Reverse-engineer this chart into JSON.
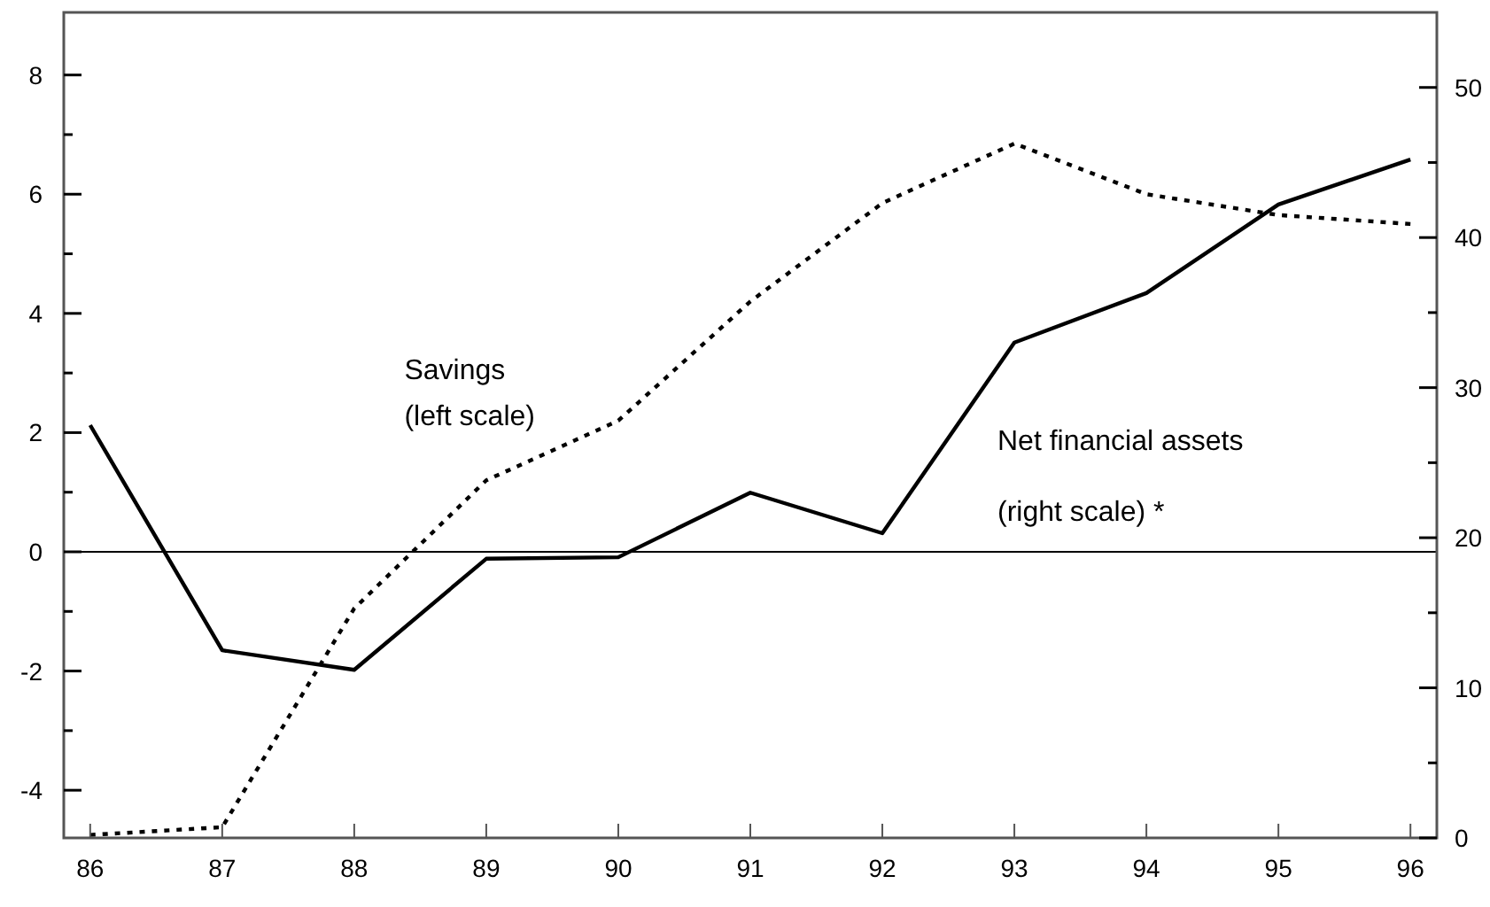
{
  "chart_data": {
    "type": "line",
    "x": [
      86,
      87,
      88,
      89,
      90,
      91,
      92,
      93,
      94,
      95,
      96
    ],
    "xlim": [
      85.8,
      96.2
    ],
    "xticks": [
      86,
      87,
      88,
      89,
      90,
      91,
      92,
      93,
      94,
      95,
      96
    ],
    "ylim": [
      -4.8,
      9.05
    ],
    "yticks": [
      -4,
      {
        "value": -3,
        "label": null
      },
      -2,
      {
        "value": -1,
        "label": null
      },
      0,
      {
        "value": 1,
        "label": null
      },
      2,
      {
        "value": 3,
        "label": null
      },
      4,
      {
        "value": 5,
        "label": null
      },
      6,
      {
        "value": 7,
        "label": null
      },
      8
    ],
    "y2lim": [
      0,
      55
    ],
    "y2ticks": [
      0,
      {
        "value": 5,
        "label": null
      },
      10,
      {
        "value": 15,
        "label": null
      },
      20,
      {
        "value": 25,
        "label": null
      },
      30,
      {
        "value": 35,
        "label": null
      },
      40,
      {
        "value": 45,
        "label": null
      },
      50
    ],
    "series": [
      {
        "name": "Savings",
        "color": "#000000",
        "line_style": "dotted",
        "values": [
          -4.75,
          -4.62,
          -0.95,
          1.2,
          2.2,
          4.2,
          5.85,
          6.85,
          6.0,
          5.65,
          5.5
        ]
      },
      {
        "name": "Net financial assets",
        "color": "#000000",
        "line_style": "solid",
        "axis": "y2",
        "values": [
          27.5,
          12.5,
          11.2,
          18.6,
          18.7,
          23.0,
          20.3,
          33.0,
          36.3,
          42.2,
          45.2
        ]
      }
    ],
    "annotations": [
      "(left scale)",
      "(right scale) *"
    ],
    "ref_lines": [
      {
        "axis": "y",
        "value": 0,
        "color": "#000000"
      }
    ],
    "grid": false,
    "marker": "none"
  }
}
